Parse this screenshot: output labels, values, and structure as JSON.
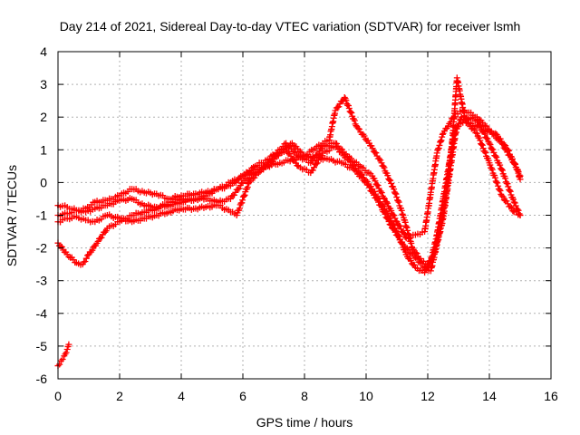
{
  "chart_data": {
    "type": "scatter",
    "title": "Day 214 of 2021, Sidereal Day-to-day VTEC variation (SDTVAR) for receiver lsmh",
    "xlabel": "GPS time / hours",
    "ylabel": "SDTVAR / TECUs",
    "xlim": [
      0,
      16
    ],
    "ylim": [
      -6,
      4
    ],
    "xticks": [
      0,
      2,
      4,
      6,
      8,
      10,
      12,
      14,
      16
    ],
    "yticks": [
      -6,
      -5,
      -4,
      -3,
      -2,
      -1,
      0,
      1,
      2,
      3,
      4
    ],
    "grid": true,
    "marker": "+",
    "color": "#ff0000",
    "series": [
      {
        "x": [
          0.0,
          0.1,
          0.2,
          0.3,
          0.35
        ],
        "y": [
          -5.6,
          -5.45,
          -5.3,
          -5.1,
          -4.95
        ]
      },
      {
        "x": [
          0.0,
          0.3,
          0.6,
          0.9,
          1.2,
          1.6,
          2.0,
          2.4,
          2.8,
          3.2,
          3.6,
          4.0,
          4.4,
          4.8,
          5.2,
          5.6,
          6.0,
          6.4,
          6.8,
          7.2,
          7.4,
          7.8,
          8.2,
          8.6,
          9.0,
          9.4,
          9.8,
          10.2,
          10.6,
          11.0,
          11.3,
          11.6,
          11.9,
          12.1,
          12.3,
          12.5,
          12.7,
          12.9,
          13.2,
          13.6,
          14.0,
          14.4,
          14.8,
          15.0
        ],
        "y": [
          -0.7,
          -0.75,
          -0.85,
          -0.8,
          -0.6,
          -0.55,
          -0.4,
          -0.2,
          -0.3,
          -0.35,
          -0.5,
          -0.4,
          -0.35,
          -0.3,
          -0.2,
          -0.1,
          0.2,
          0.5,
          0.7,
          1.0,
          1.2,
          0.8,
          0.6,
          1.1,
          1.2,
          0.8,
          0.5,
          0.2,
          -0.5,
          -1.2,
          -1.7,
          -1.6,
          -1.5,
          -0.3,
          0.9,
          1.5,
          1.8,
          2.1,
          2.2,
          2.0,
          1.6,
          1.2,
          0.6,
          0.2
        ]
      },
      {
        "x": [
          0.0,
          0.3,
          0.6,
          0.9,
          1.2,
          1.6,
          2.0,
          2.4,
          2.8,
          3.2,
          3.6,
          4.0,
          4.4,
          4.8,
          5.2,
          5.6,
          6.0,
          6.4,
          6.8,
          7.2,
          7.6,
          8.0,
          8.4,
          8.8,
          9.0,
          9.3,
          9.7,
          10.1,
          10.5,
          10.9,
          11.2,
          11.5,
          11.8,
          12.0,
          12.2,
          12.4,
          12.6,
          12.8,
          12.95,
          13.2,
          13.6,
          14.0,
          14.4,
          14.8,
          15.0
        ],
        "y": [
          -1.0,
          -0.95,
          -0.85,
          -0.9,
          -0.8,
          -0.7,
          -0.55,
          -0.5,
          -0.7,
          -0.75,
          -0.7,
          -0.6,
          -0.5,
          -0.5,
          -0.6,
          -0.5,
          0.0,
          0.3,
          0.5,
          0.9,
          1.2,
          0.8,
          1.1,
          1.3,
          2.2,
          2.6,
          1.7,
          1.2,
          0.6,
          -0.2,
          -1.0,
          -2.0,
          -2.4,
          -2.5,
          -2.2,
          -1.4,
          -0.3,
          1.3,
          3.2,
          2.0,
          1.9,
          1.2,
          0.4,
          -0.6,
          -1.0
        ]
      },
      {
        "x": [
          0.0,
          0.3,
          0.6,
          0.9,
          1.2,
          1.6,
          2.0,
          2.4,
          2.8,
          3.2,
          3.6,
          4.0,
          4.4,
          4.8,
          5.2,
          5.6,
          5.8,
          6.2,
          6.6,
          7.0,
          7.4,
          7.8,
          8.2,
          8.6,
          9.0,
          9.4,
          9.8,
          10.2,
          10.6,
          11.0,
          11.3,
          11.6,
          11.9,
          12.1,
          12.3,
          12.5,
          12.7,
          12.9,
          13.2,
          13.6,
          14.0,
          14.4,
          14.8,
          15.0
        ],
        "y": [
          -1.2,
          -1.1,
          -1.05,
          -1.15,
          -1.2,
          -1.0,
          -1.1,
          -1.2,
          -1.1,
          -1.0,
          -0.9,
          -0.8,
          -0.8,
          -0.75,
          -0.7,
          -0.9,
          -1.0,
          0.0,
          0.4,
          0.8,
          1.0,
          0.5,
          0.3,
          0.9,
          1.1,
          0.7,
          0.3,
          -0.2,
          -0.8,
          -1.5,
          -2.2,
          -2.6,
          -2.75,
          -2.4,
          -1.6,
          -0.5,
          0.6,
          1.7,
          1.9,
          1.5,
          0.6,
          -0.4,
          -0.9,
          -1.0
        ]
      },
      {
        "x": [
          0.0,
          0.3,
          0.6,
          0.8,
          1.0,
          1.3,
          1.6,
          2.0,
          2.4,
          2.8,
          3.2,
          3.6,
          4.0,
          4.4,
          4.8,
          5.2,
          5.6,
          6.0,
          6.4,
          6.8,
          7.2,
          7.6,
          8.0,
          8.4,
          8.8,
          9.2,
          9.6,
          10.0,
          10.4,
          10.8,
          11.2,
          11.6,
          11.9,
          12.1,
          12.3,
          12.5,
          12.7,
          12.9,
          13.1,
          13.4,
          13.8,
          14.2,
          14.6,
          14.9,
          15.0
        ],
        "y": [
          -1.85,
          -2.2,
          -2.45,
          -2.5,
          -2.2,
          -1.8,
          -1.4,
          -1.2,
          -1.0,
          -0.9,
          -0.8,
          -0.6,
          -0.5,
          -0.55,
          -0.4,
          -0.2,
          0.0,
          0.2,
          0.4,
          0.5,
          0.6,
          0.7,
          0.8,
          0.75,
          0.7,
          0.6,
          0.4,
          0.0,
          -0.6,
          -1.3,
          -1.9,
          -2.3,
          -2.6,
          -2.7,
          -1.9,
          -1.1,
          0.2,
          1.5,
          2.0,
          1.8,
          1.6,
          1.5,
          1.0,
          0.4,
          0.1
        ]
      }
    ]
  }
}
